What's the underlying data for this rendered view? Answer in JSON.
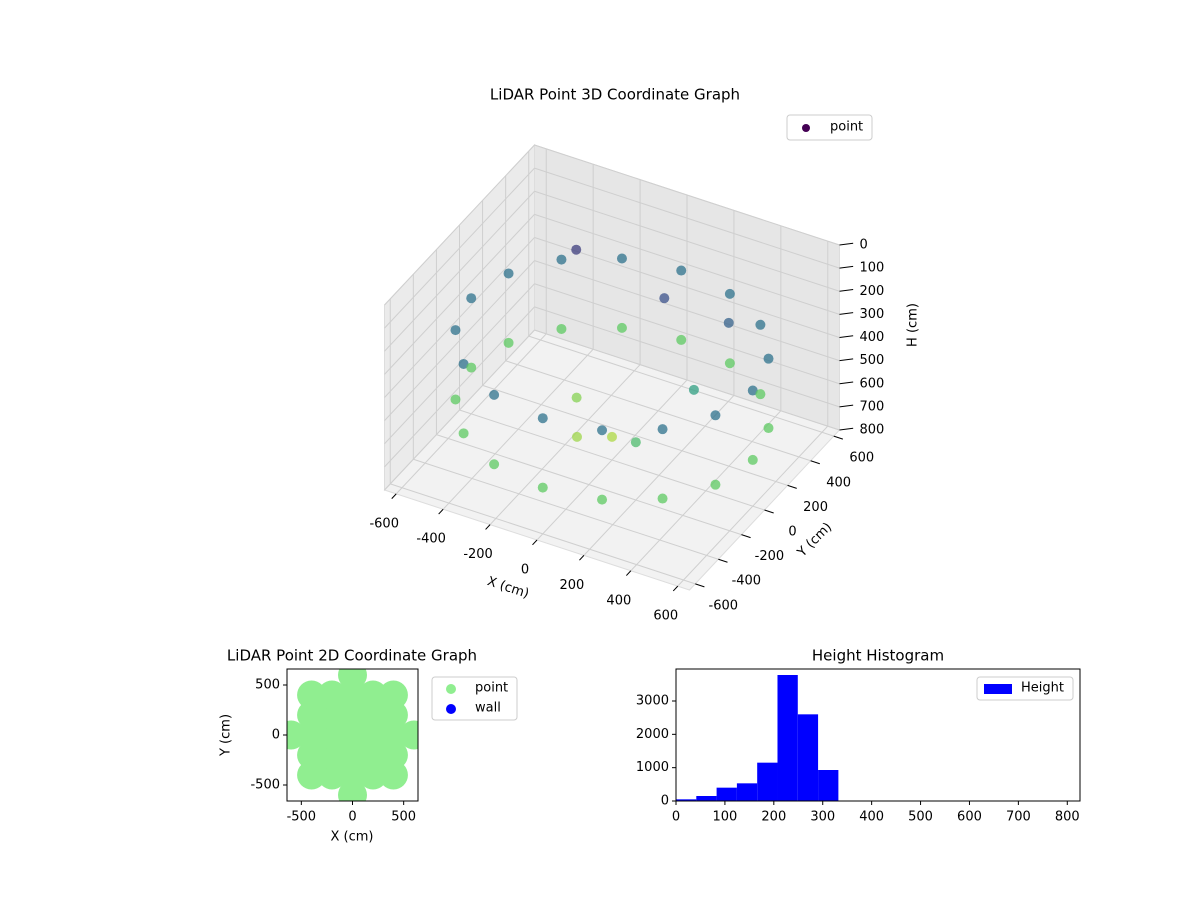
{
  "chart_data": [
    {
      "type": "scatter3d",
      "title": "LiDAR Point 3D Coordinate Graph",
      "x_label": "X (cm)",
      "y_label": "Y (cm)",
      "z_label": "H (cm)",
      "legend": "point",
      "legend_color": "#440154",
      "colormap": [
        "#440154",
        "#3b528b",
        "#21918c",
        "#5ec962",
        "#fde725"
      ],
      "xlim": [
        -650,
        650
      ],
      "ylim": [
        -650,
        650
      ],
      "zlim": [
        800,
        0
      ],
      "xticks": [
        -600,
        -400,
        -200,
        0,
        200,
        400,
        600
      ],
      "yticks": [
        -600,
        -400,
        -200,
        0,
        200,
        400,
        600
      ],
      "zticks": [
        0,
        100,
        200,
        300,
        400,
        500,
        600,
        700,
        800
      ],
      "x": [
        600,
        554,
        424,
        230,
        0,
        -230,
        -424,
        -554,
        -600,
        -554,
        -424,
        -230,
        0,
        230,
        424,
        554,
        600,
        554,
        424,
        230,
        0,
        -230,
        -424,
        -554,
        -600,
        -554,
        -424,
        -230,
        0,
        230,
        424,
        554,
        -300,
        100,
        -200,
        300,
        0,
        200,
        -100,
        350
      ],
      "y": [
        0,
        230,
        424,
        554,
        600,
        554,
        424,
        230,
        0,
        -230,
        -424,
        -554,
        -600,
        -554,
        -424,
        -230,
        0,
        230,
        424,
        554,
        600,
        554,
        424,
        230,
        0,
        -230,
        -424,
        -554,
        -600,
        -554,
        -424,
        -230,
        300,
        250,
        100,
        100,
        0,
        -200,
        -100,
        300
      ],
      "z": [
        300,
        300,
        300,
        300,
        300,
        300,
        300,
        300,
        300,
        300,
        300,
        300,
        300,
        300,
        300,
        300,
        600,
        600,
        600,
        600,
        600,
        600,
        600,
        600,
        600,
        600,
        600,
        600,
        600,
        600,
        600,
        600,
        150,
        200,
        650,
        450,
        700,
        550,
        680,
        250
      ]
    },
    {
      "type": "scatter",
      "title": "LiDAR Point 2D Coordinate Graph",
      "x_label": "X (cm)",
      "y_label": "Y (cm)",
      "xlim": [
        -640,
        640
      ],
      "ylim": [
        -660,
        660
      ],
      "xticks": [
        -500,
        0,
        500
      ],
      "yticks": [
        -500,
        0,
        500
      ],
      "marker_size": 14.5,
      "series": [
        {
          "name": "point",
          "color": "#90ee90",
          "x": [
            -600,
            -400,
            -400,
            -400,
            -400,
            -400,
            -200,
            -200,
            -200,
            -200,
            -200,
            0,
            0,
            0,
            0,
            0,
            0,
            0,
            200,
            200,
            200,
            200,
            200,
            400,
            400,
            400,
            400,
            400,
            600
          ],
          "y": [
            0,
            -400,
            -200,
            0,
            200,
            400,
            -400,
            -200,
            0,
            200,
            400,
            -600,
            -400,
            -200,
            0,
            200,
            400,
            600,
            -400,
            -200,
            0,
            200,
            400,
            -400,
            -200,
            0,
            200,
            400,
            0
          ]
        },
        {
          "name": "wall",
          "color": "#0000ff",
          "x": [],
          "y": []
        }
      ]
    },
    {
      "type": "histogram",
      "title": "Height Histogram",
      "legend": "Height",
      "color": "#0000ff",
      "bins": [
        0,
        41.5,
        83,
        124.5,
        166,
        207.5,
        249,
        290.5,
        332,
        373.5,
        415,
        456.5,
        498,
        539.5,
        581,
        622.5,
        664,
        705.5,
        747,
        788.5,
        830
      ],
      "values": [
        50,
        150,
        400,
        530,
        1150,
        3780,
        2600,
        930,
        0,
        0,
        0,
        0,
        0,
        0,
        0,
        0,
        0,
        0,
        0,
        0
      ],
      "xlim": [
        0,
        826
      ],
      "ylim": [
        0,
        3960
      ],
      "xticks": [
        0,
        100,
        200,
        300,
        400,
        500,
        600,
        700,
        800
      ],
      "yticks": [
        0,
        1000,
        2000,
        3000
      ]
    }
  ]
}
